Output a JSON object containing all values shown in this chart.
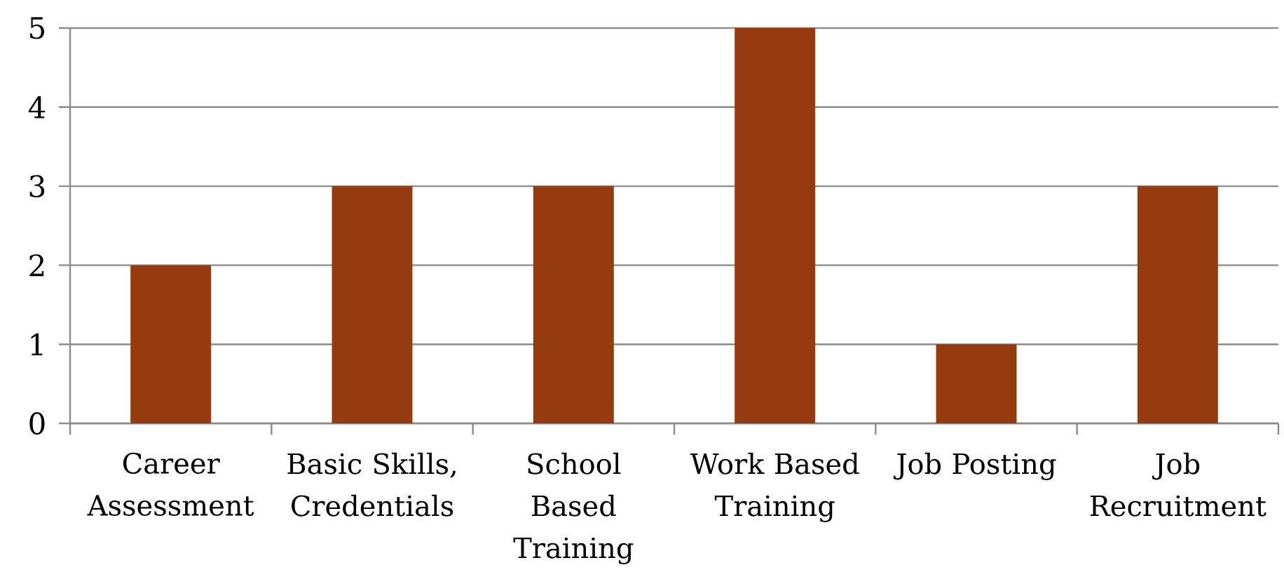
{
  "chart_data": {
    "type": "bar",
    "categories": [
      "Career Assessment",
      "Basic Skills, Credentials",
      "School Based Training",
      "Work Based Training",
      "Job Posting",
      "Job Recruitment"
    ],
    "values": [
      2,
      3,
      3,
      5,
      1,
      3
    ],
    "color": "#963a10",
    "ylim": [
      0,
      5
    ],
    "yticks": [
      0,
      1,
      2,
      3,
      4,
      5
    ],
    "grid": "y"
  }
}
